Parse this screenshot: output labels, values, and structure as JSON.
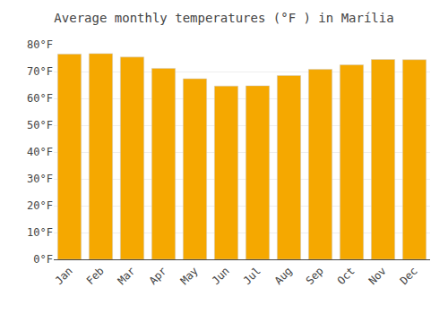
{
  "chart_data": {
    "type": "bar",
    "title": "Average monthly temperatures (°F ) in Marília",
    "categories": [
      "Jan",
      "Feb",
      "Mar",
      "Apr",
      "May",
      "Jun",
      "Jul",
      "Aug",
      "Sep",
      "Oct",
      "Nov",
      "Dec"
    ],
    "values": [
      76.5,
      76.7,
      75.4,
      71.2,
      67.3,
      64.6,
      64.7,
      68.5,
      70.8,
      72.5,
      74.5,
      74.4
    ],
    "color": "#F5A800",
    "ylim": [
      0,
      80
    ],
    "yticks": [
      {
        "value": 0,
        "label": "0°F"
      },
      {
        "value": 10,
        "label": "10°F"
      },
      {
        "value": 20,
        "label": "20°F"
      },
      {
        "value": 30,
        "label": "30°F"
      },
      {
        "value": 40,
        "label": "40°F"
      },
      {
        "value": 50,
        "label": "50°F"
      },
      {
        "value": 60,
        "label": "60°F"
      },
      {
        "value": 70,
        "label": "70°F"
      },
      {
        "value": 80,
        "label": "80°F"
      }
    ],
    "grid": true
  }
}
